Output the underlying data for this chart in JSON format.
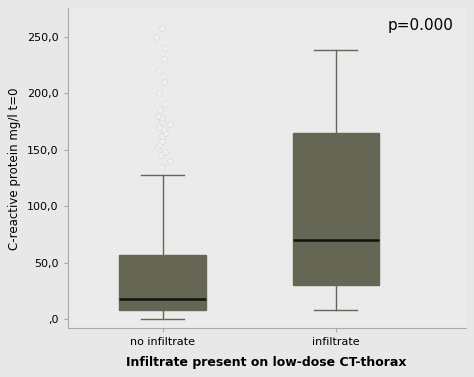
{
  "categories": [
    "no infiltrate",
    "infiltrate"
  ],
  "box1": {
    "whislo": 0,
    "q1": 8,
    "med": 18,
    "q3": 57,
    "whishi": 128
  },
  "box2": {
    "whislo": 8,
    "q1": 30,
    "med": 70,
    "q3": 165,
    "whishi": 238
  },
  "fliers1_x": [
    1.0,
    1.02,
    0.98,
    1.01,
    0.99,
    1.0,
    1.02,
    0.98,
    1.01,
    0.99,
    1.0,
    1.02,
    0.98,
    1.01,
    0.99,
    1.0,
    1.02,
    0.98,
    1.01,
    0.99,
    1.0,
    1.03,
    0.97,
    1.0
  ],
  "fliers1_y": [
    135,
    140,
    145,
    148,
    152,
    155,
    158,
    162,
    165,
    168,
    170,
    173,
    175,
    178,
    180,
    185,
    190,
    200,
    210,
    220,
    230,
    240,
    250,
    258
  ],
  "ylabel": "C-reactive protein mg/l t=0",
  "xlabel": "Infiltrate present on low-dose CT-thorax",
  "yticks": [
    0,
    50,
    100,
    150,
    200,
    250
  ],
  "ytick_labels": [
    ",0",
    "50,0",
    "100,0",
    "150,0",
    "200,0",
    "250,0"
  ],
  "ylim": [
    -8,
    275
  ],
  "xlim": [
    0.45,
    2.75
  ],
  "box_width": 0.5,
  "box_color": "#c8c87a",
  "box_edge_color": "#666655",
  "median_color": "#111111",
  "whisker_color": "#666655",
  "flier_color": "#f0f0f0",
  "flier_edge_color": "#cccccc",
  "bg_color": "#e8e8e8",
  "plot_bg_color": "#ebebeb",
  "annotation": "p=0.000",
  "annotation_fontsize": 11,
  "xlabel_fontsize": 9,
  "ylabel_fontsize": 8.5,
  "tick_fontsize": 8,
  "positions": [
    1,
    2
  ]
}
